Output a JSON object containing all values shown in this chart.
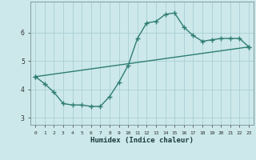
{
  "title": "",
  "xlabel": "Humidex (Indice chaleur)",
  "background_color": "#cce8ea",
  "grid_color": "#aacfd4",
  "line_color": "#2e7d74",
  "xlim": [
    -0.5,
    23.5
  ],
  "ylim": [
    2.75,
    7.1
  ],
  "yticks": [
    3,
    4,
    5,
    6
  ],
  "xticks": [
    0,
    1,
    2,
    3,
    4,
    5,
    6,
    7,
    8,
    9,
    10,
    11,
    12,
    13,
    14,
    15,
    16,
    17,
    18,
    19,
    20,
    21,
    22,
    23
  ],
  "curve1_x": [
    0,
    1,
    2,
    3,
    4,
    5,
    6,
    7,
    8,
    9,
    10,
    11,
    12,
    13,
    14,
    15,
    16,
    17,
    18,
    19,
    20,
    21,
    22,
    23
  ],
  "curve1_y": [
    4.45,
    4.2,
    3.9,
    3.5,
    3.45,
    3.45,
    3.4,
    3.4,
    3.75,
    4.25,
    4.85,
    5.8,
    6.35,
    6.4,
    6.65,
    6.7,
    6.2,
    5.9,
    5.7,
    5.75,
    5.8,
    5.8,
    5.8,
    5.5
  ],
  "curve2_x": [
    0,
    23
  ],
  "curve2_y": [
    4.45,
    5.5
  ],
  "marker": "+",
  "markersize": 4,
  "linewidth": 1.0
}
